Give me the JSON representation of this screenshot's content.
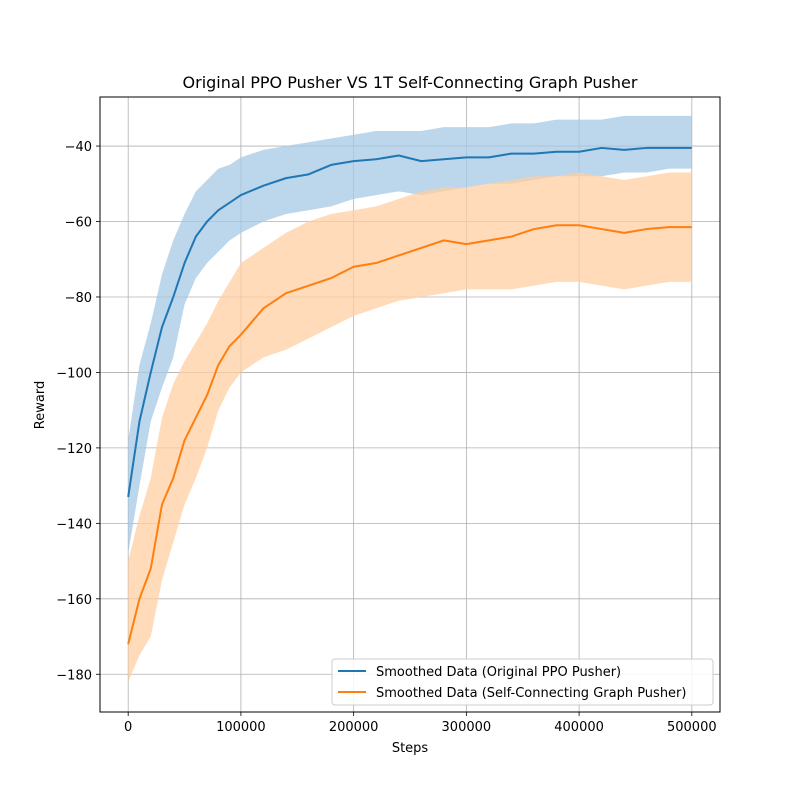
{
  "chart_data": {
    "type": "line",
    "title": "Original PPO Pusher VS 1T Self-Connecting Graph Pusher",
    "xlabel": "Steps",
    "ylabel": "Reward",
    "xlim": [
      -25000,
      525000
    ],
    "ylim": [
      -190,
      -27
    ],
    "xticks": [
      0,
      100000,
      200000,
      300000,
      400000,
      500000
    ],
    "xtick_labels": [
      "0",
      "100000",
      "200000",
      "300000",
      "400000",
      "500000"
    ],
    "yticks": [
      -180,
      -160,
      -140,
      -120,
      -100,
      -80,
      -60,
      -40
    ],
    "ytick_labels": [
      "−180",
      "−160",
      "−140",
      "−120",
      "−100",
      "−80",
      "−60",
      "−40"
    ],
    "grid": true,
    "legend_position": "lower right",
    "series": [
      {
        "name": "Smoothed Data (Original PPO Pusher)",
        "color": "#1f77b4",
        "band_color": "#a6c8e4",
        "x": [
          0,
          10000,
          20000,
          30000,
          40000,
          50000,
          60000,
          70000,
          80000,
          90000,
          100000,
          120000,
          140000,
          160000,
          180000,
          200000,
          220000,
          240000,
          260000,
          280000,
          300000,
          320000,
          340000,
          360000,
          380000,
          400000,
          420000,
          440000,
          460000,
          480000,
          500000
        ],
        "values": [
          -133,
          -113,
          -100,
          -88,
          -80,
          -71,
          -64,
          -60,
          -57,
          -55,
          -53,
          -50.5,
          -48.5,
          -47.5,
          -45,
          -44,
          -43.5,
          -42.5,
          -44,
          -43.5,
          -43,
          -43,
          -42,
          -42,
          -41.5,
          -41.5,
          -40.5,
          -41,
          -40.5,
          -40.5,
          -40.5
        ],
        "band_low": [
          -148,
          -130,
          -113,
          -104,
          -96,
          -82,
          -75,
          -71,
          -68,
          -65,
          -63,
          -60,
          -58,
          -57,
          -56,
          -54,
          -53,
          -52,
          -53,
          -52,
          -51,
          -50,
          -50,
          -49,
          -48,
          -48,
          -48,
          -47,
          -47,
          -46,
          -46
        ],
        "band_high": [
          -118,
          -98,
          -87,
          -74,
          -65,
          -58,
          -52,
          -49,
          -46,
          -45,
          -43,
          -41,
          -40,
          -39,
          -38,
          -37,
          -36,
          -36,
          -36,
          -35,
          -35,
          -35,
          -34,
          -34,
          -33,
          -33,
          -33,
          -32,
          -32,
          -32,
          -32
        ]
      },
      {
        "name": "Smoothed Data (Self-Connecting Graph Pusher)",
        "color": "#ff7f0e",
        "band_color": "#ffcfa3",
        "x": [
          0,
          10000,
          20000,
          30000,
          40000,
          50000,
          60000,
          70000,
          80000,
          90000,
          100000,
          120000,
          140000,
          160000,
          180000,
          200000,
          220000,
          240000,
          260000,
          280000,
          300000,
          320000,
          340000,
          360000,
          380000,
          400000,
          420000,
          440000,
          460000,
          480000,
          500000
        ],
        "values": [
          -172,
          -160,
          -152,
          -135,
          -128,
          -118,
          -112,
          -106,
          -98,
          -93,
          -90,
          -83,
          -79,
          -77,
          -75,
          -72,
          -71,
          -69,
          -67,
          -65,
          -66,
          -65,
          -64,
          -62,
          -61,
          -61,
          -62,
          -63,
          -62,
          -61.5,
          -61.5
        ],
        "band_low": [
          -182,
          -175,
          -170,
          -155,
          -145,
          -135,
          -128,
          -120,
          -110,
          -104,
          -100,
          -96,
          -94,
          -91,
          -88,
          -85,
          -83,
          -81,
          -80,
          -79,
          -78,
          -78,
          -78,
          -77,
          -76,
          -76,
          -77,
          -78,
          -77,
          -76,
          -76
        ],
        "band_high": [
          -150,
          -138,
          -128,
          -112,
          -103,
          -97,
          -92,
          -87,
          -81,
          -76,
          -71,
          -67,
          -63,
          -60,
          -58,
          -57,
          -56,
          -54,
          -52,
          -51,
          -51,
          -50,
          -49,
          -48,
          -48,
          -47,
          -48,
          -49,
          -48,
          -47,
          -47
        ]
      }
    ]
  }
}
